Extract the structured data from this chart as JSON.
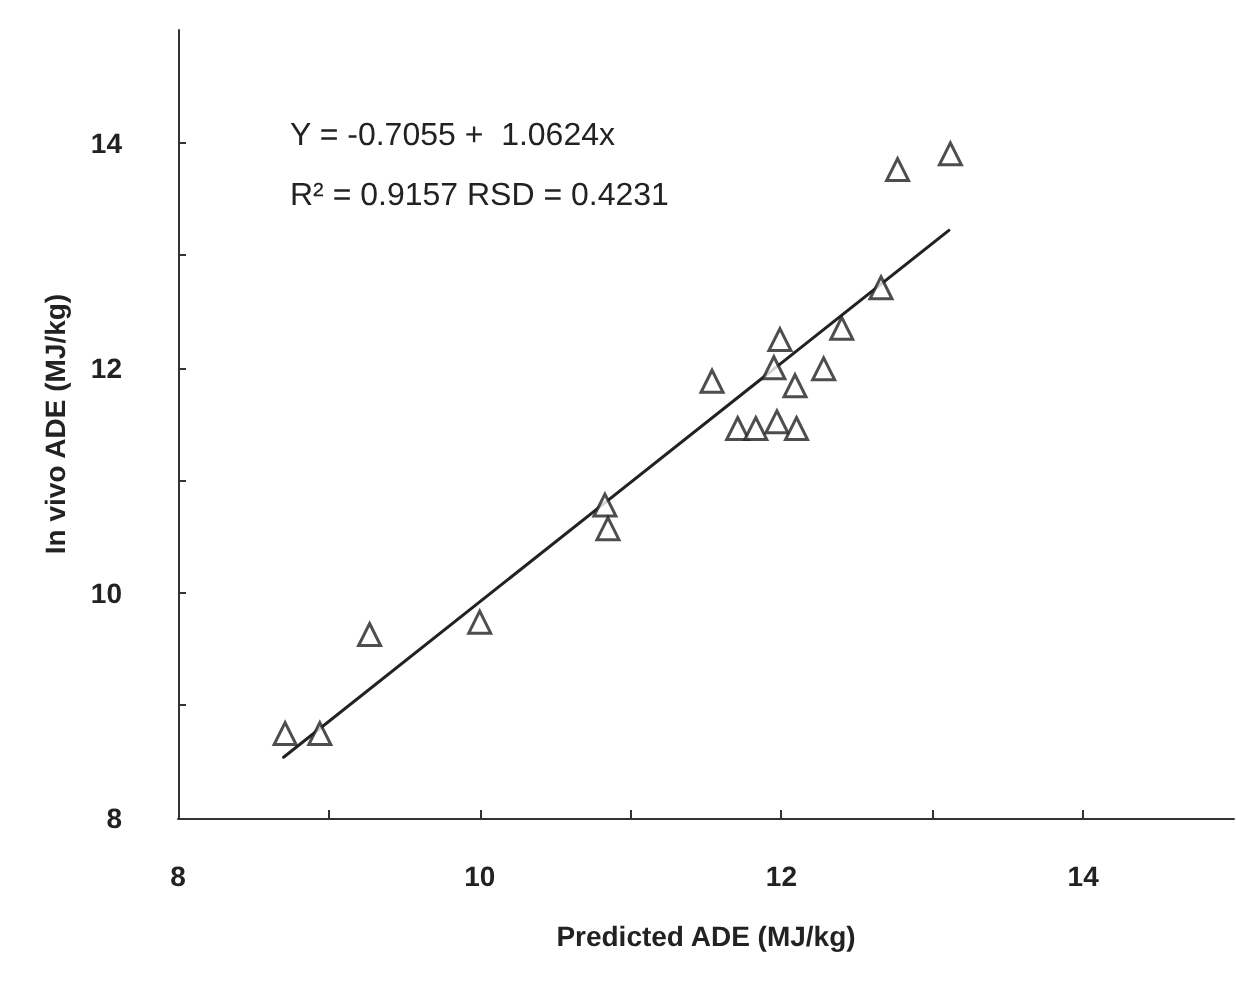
{
  "chart_data": {
    "type": "scatter",
    "xlabel": "Predicted ADE (MJ/kg)",
    "ylabel": "In vivo ADE (MJ/kg)",
    "annotations": [
      "Y = -0.7055 +  1.0624x",
      "R² = 0.9157 RSD = 0.4231"
    ],
    "xlim": [
      8,
      15
    ],
    "xticks": [
      8,
      {
        "value": 9,
        "label": null
      },
      10,
      {
        "value": 11,
        "label": null
      },
      12,
      {
        "value": 13,
        "label": null
      },
      14
    ],
    "ylim": [
      8,
      15
    ],
    "yticks": [
      8,
      {
        "value": 9,
        "label": null
      },
      10,
      {
        "value": 11,
        "label": null
      },
      12,
      {
        "value": 13,
        "label": null
      },
      14
    ],
    "grid": false,
    "series": [
      {
        "marker": "triangle",
        "color": "#222222",
        "x": [
          8.71,
          8.94,
          9.27,
          10.0,
          10.83,
          10.85,
          11.54,
          11.71,
          11.83,
          11.97,
          12.1,
          11.95,
          11.99,
          12.09,
          12.28,
          12.4,
          12.66,
          12.77,
          13.12
        ],
        "values": [
          8.75,
          8.75,
          9.63,
          9.74,
          10.78,
          10.57,
          11.88,
          11.46,
          11.46,
          11.52,
          11.46,
          12.0,
          12.25,
          11.84,
          11.99,
          12.35,
          12.71,
          13.76,
          13.9
        ]
      },
      {
        "type": "line",
        "marker": "none",
        "line_style": "solid",
        "color": "#222222",
        "x": [
          8.7,
          13.11
        ],
        "values": [
          8.54,
          13.22
        ]
      }
    ]
  }
}
